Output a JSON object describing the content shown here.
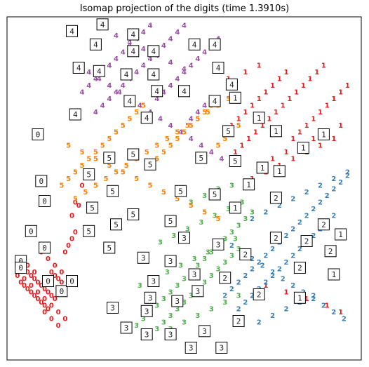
{
  "chart_data": {
    "type": "scatter",
    "title": "Isomap projection of the digits (time 1.3910s)",
    "xlabel": "",
    "ylabel": "",
    "grid": false,
    "legend": "none",
    "axis_ticks": "hidden",
    "xlim": [
      0,
      1
    ],
    "ylim": [
      0,
      1
    ],
    "colors": {
      "0": "#e41a1c",
      "1": "#e41a1c",
      "2": "#377eb8",
      "3": "#4daf4a",
      "4": "#984ea3",
      "5": "#ff7f00"
    },
    "series": [
      {
        "label": "0",
        "x": [
          0.01,
          0.02,
          0.03,
          0.04,
          0.05,
          0.06,
          0.07,
          0.08,
          0.09,
          0.1,
          0.11,
          0.12,
          0.15,
          0.16,
          0.17,
          0.18,
          0.02,
          0.03,
          0.04,
          0.05,
          0.06,
          0.07,
          0.08,
          0.09,
          0.1,
          0.11,
          0.12,
          0.13,
          0.14,
          0.18,
          0.2,
          0.01,
          0.03,
          0.05,
          0.07,
          0.09,
          0.11,
          0.13,
          0.15,
          0.08,
          0.1,
          0.12,
          0.14,
          0.16,
          0.17,
          0.19,
          0.02,
          0.04,
          0.06,
          0.09,
          0.11,
          0.13
        ],
        "y": [
          0.27,
          0.26,
          0.25,
          0.24,
          0.23,
          0.22,
          0.21,
          0.2,
          0.19,
          0.18,
          0.17,
          0.16,
          0.3,
          0.32,
          0.34,
          0.36,
          0.21,
          0.2,
          0.19,
          0.18,
          0.17,
          0.16,
          0.15,
          0.14,
          0.13,
          0.24,
          0.23,
          0.22,
          0.21,
          0.45,
          0.5,
          0.23,
          0.22,
          0.2,
          0.18,
          0.16,
          0.14,
          0.12,
          0.1,
          0.3,
          0.28,
          0.26,
          0.24,
          0.22,
          0.41,
          0.44,
          0.28,
          0.26,
          0.24,
          0.12,
          0.1,
          0.08
        ]
      },
      {
        "label": "1",
        "x": [
          0.62,
          0.64,
          0.66,
          0.68,
          0.7,
          0.72,
          0.74,
          0.76,
          0.78,
          0.8,
          0.82,
          0.84,
          0.86,
          0.88,
          0.9,
          0.92,
          0.94,
          0.96,
          0.98,
          0.65,
          0.67,
          0.69,
          0.71,
          0.73,
          0.75,
          0.77,
          0.79,
          0.81,
          0.83,
          0.85,
          0.87,
          0.89,
          0.91,
          0.63,
          0.68,
          0.72,
          0.76,
          0.8,
          0.84,
          0.88,
          0.92,
          0.96,
          0.7,
          0.74,
          0.78,
          0.82,
          0.86,
          0.9,
          0.94,
          0.74,
          0.8,
          0.86,
          0.92,
          0.96
        ],
        "y": [
          0.66,
          0.68,
          0.7,
          0.72,
          0.74,
          0.76,
          0.78,
          0.8,
          0.82,
          0.84,
          0.64,
          0.66,
          0.68,
          0.7,
          0.72,
          0.74,
          0.76,
          0.78,
          0.8,
          0.6,
          0.62,
          0.64,
          0.66,
          0.68,
          0.7,
          0.72,
          0.74,
          0.76,
          0.78,
          0.8,
          0.82,
          0.84,
          0.86,
          0.82,
          0.84,
          0.86,
          0.58,
          0.6,
          0.62,
          0.64,
          0.66,
          0.68,
          0.52,
          0.54,
          0.56,
          0.58,
          0.6,
          0.62,
          0.64,
          0.2,
          0.18,
          0.16,
          0.14,
          0.12
        ]
      },
      {
        "label": "2",
        "x": [
          0.62,
          0.64,
          0.66,
          0.68,
          0.7,
          0.72,
          0.74,
          0.76,
          0.78,
          0.8,
          0.82,
          0.84,
          0.86,
          0.88,
          0.9,
          0.92,
          0.94,
          0.96,
          0.98,
          0.66,
          0.68,
          0.7,
          0.72,
          0.74,
          0.76,
          0.78,
          0.8,
          0.82,
          0.84,
          0.86,
          0.88,
          0.9,
          0.92,
          0.94,
          0.64,
          0.67,
          0.7,
          0.73,
          0.76,
          0.79,
          0.82,
          0.85,
          0.88,
          0.91,
          0.94,
          0.97,
          0.7,
          0.74,
          0.78,
          0.82,
          0.86,
          0.9,
          0.94,
          0.98,
          0.72,
          0.76,
          0.8,
          0.84,
          0.88
        ],
        "y": [
          0.17,
          0.19,
          0.21,
          0.23,
          0.25,
          0.27,
          0.29,
          0.31,
          0.33,
          0.35,
          0.37,
          0.39,
          0.41,
          0.43,
          0.45,
          0.47,
          0.49,
          0.51,
          0.53,
          0.13,
          0.15,
          0.17,
          0.19,
          0.21,
          0.23,
          0.25,
          0.27,
          0.29,
          0.31,
          0.33,
          0.35,
          0.37,
          0.39,
          0.41,
          0.32,
          0.3,
          0.28,
          0.26,
          0.24,
          0.22,
          0.2,
          0.18,
          0.16,
          0.14,
          0.12,
          0.1,
          0.4,
          0.42,
          0.44,
          0.46,
          0.48,
          0.5,
          0.52,
          0.54,
          0.09,
          0.11,
          0.13,
          0.15,
          0.17
        ]
      },
      {
        "label": "3",
        "x": [
          0.36,
          0.38,
          0.4,
          0.42,
          0.44,
          0.46,
          0.48,
          0.5,
          0.52,
          0.54,
          0.56,
          0.58,
          0.6,
          0.62,
          0.64,
          0.66,
          0.68,
          0.7,
          0.4,
          0.42,
          0.44,
          0.46,
          0.48,
          0.5,
          0.52,
          0.54,
          0.56,
          0.58,
          0.6,
          0.62,
          0.64,
          0.66,
          0.37,
          0.41,
          0.45,
          0.49,
          0.53,
          0.57,
          0.61,
          0.65,
          0.43,
          0.47,
          0.51,
          0.55,
          0.59,
          0.63,
          0.67,
          0.46,
          0.5,
          0.54,
          0.58,
          0.62,
          0.66,
          0.52,
          0.56,
          0.6,
          0.64
        ],
        "y": [
          0.08,
          0.1,
          0.12,
          0.14,
          0.16,
          0.18,
          0.2,
          0.22,
          0.24,
          0.26,
          0.28,
          0.3,
          0.32,
          0.34,
          0.36,
          0.38,
          0.4,
          0.42,
          0.05,
          0.07,
          0.09,
          0.11,
          0.13,
          0.15,
          0.17,
          0.19,
          0.21,
          0.23,
          0.25,
          0.27,
          0.29,
          0.31,
          0.2,
          0.22,
          0.24,
          0.26,
          0.28,
          0.3,
          0.32,
          0.34,
          0.33,
          0.35,
          0.37,
          0.39,
          0.41,
          0.43,
          0.45,
          0.07,
          0.09,
          0.11,
          0.13,
          0.15,
          0.17,
          0.45,
          0.47,
          0.49,
          0.5
        ]
      },
      {
        "label": "4",
        "x": [
          0.2,
          0.22,
          0.24,
          0.26,
          0.28,
          0.3,
          0.32,
          0.34,
          0.36,
          0.38,
          0.4,
          0.42,
          0.44,
          0.46,
          0.48,
          0.5,
          0.52,
          0.54,
          0.56,
          0.58,
          0.6,
          0.24,
          0.26,
          0.28,
          0.3,
          0.32,
          0.34,
          0.36,
          0.38,
          0.4,
          0.42,
          0.44,
          0.46,
          0.48,
          0.5,
          0.52,
          0.54,
          0.56,
          0.22,
          0.25,
          0.28,
          0.31,
          0.34,
          0.37,
          0.4,
          0.43,
          0.46,
          0.49,
          0.52,
          0.55,
          0.58,
          0.61,
          0.3,
          0.34,
          0.38,
          0.42,
          0.46,
          0.5
        ],
        "y": [
          0.78,
          0.8,
          0.82,
          0.84,
          0.86,
          0.88,
          0.9,
          0.92,
          0.94,
          0.96,
          0.98,
          0.76,
          0.78,
          0.8,
          0.82,
          0.84,
          0.86,
          0.88,
          0.9,
          0.92,
          0.94,
          0.72,
          0.74,
          0.76,
          0.78,
          0.8,
          0.82,
          0.84,
          0.86,
          0.88,
          0.9,
          0.92,
          0.94,
          0.96,
          0.98,
          0.7,
          0.72,
          0.74,
          0.84,
          0.82,
          0.8,
          0.78,
          0.76,
          0.74,
          0.72,
          0.7,
          0.68,
          0.66,
          0.64,
          0.62,
          0.6,
          0.58,
          0.95,
          0.93,
          0.91,
          0.89,
          0.87,
          0.85
        ]
      },
      {
        "label": "5",
        "x": [
          0.14,
          0.16,
          0.18,
          0.2,
          0.22,
          0.24,
          0.26,
          0.28,
          0.3,
          0.32,
          0.34,
          0.36,
          0.38,
          0.4,
          0.42,
          0.44,
          0.46,
          0.48,
          0.5,
          0.52,
          0.54,
          0.56,
          0.58,
          0.6,
          0.62,
          0.64,
          0.66,
          0.18,
          0.21,
          0.24,
          0.27,
          0.3,
          0.33,
          0.36,
          0.39,
          0.42,
          0.45,
          0.48,
          0.51,
          0.54,
          0.57,
          0.6,
          0.63,
          0.16,
          0.2,
          0.24,
          0.28,
          0.32,
          0.36,
          0.4,
          0.44,
          0.48,
          0.52,
          0.56,
          0.6
        ],
        "y": [
          0.5,
          0.52,
          0.54,
          0.56,
          0.58,
          0.6,
          0.62,
          0.64,
          0.66,
          0.68,
          0.7,
          0.72,
          0.74,
          0.56,
          0.58,
          0.6,
          0.62,
          0.64,
          0.66,
          0.68,
          0.7,
          0.72,
          0.74,
          0.62,
          0.64,
          0.66,
          0.68,
          0.46,
          0.48,
          0.5,
          0.52,
          0.54,
          0.56,
          0.58,
          0.6,
          0.62,
          0.64,
          0.66,
          0.68,
          0.7,
          0.72,
          0.74,
          0.76,
          0.62,
          0.6,
          0.58,
          0.56,
          0.54,
          0.52,
          0.5,
          0.48,
          0.46,
          0.44,
          0.42,
          0.4
        ]
      }
    ],
    "thumbnails": [
      {
        "digit": "0",
        "x": 0.07,
        "y": 0.66
      },
      {
        "digit": "0",
        "x": 0.08,
        "y": 0.52
      },
      {
        "digit": "0",
        "x": 0.09,
        "y": 0.46
      },
      {
        "digit": "0",
        "x": 0.05,
        "y": 0.37
      },
      {
        "digit": "0",
        "x": 0.09,
        "y": 0.32
      },
      {
        "digit": "0",
        "x": 0.02,
        "y": 0.28
      },
      {
        "digit": "0",
        "x": 0.1,
        "y": 0.22
      },
      {
        "digit": "0",
        "x": 0.14,
        "y": 0.19
      },
      {
        "digit": "0",
        "x": 0.17,
        "y": 0.22
      },
      {
        "digit": "0",
        "x": 0.02,
        "y": 0.26
      },
      {
        "digit": "1",
        "x": 0.65,
        "y": 0.77
      },
      {
        "digit": "1",
        "x": 0.72,
        "y": 0.71
      },
      {
        "digit": "1",
        "x": 0.77,
        "y": 0.67
      },
      {
        "digit": "1",
        "x": 0.85,
        "y": 0.62
      },
      {
        "digit": "1",
        "x": 0.91,
        "y": 0.66
      },
      {
        "digit": "1",
        "x": 0.73,
        "y": 0.56
      },
      {
        "digit": "1",
        "x": 0.78,
        "y": 0.55
      },
      {
        "digit": "1",
        "x": 0.65,
        "y": 0.44
      },
      {
        "digit": "1",
        "x": 0.96,
        "y": 0.36
      },
      {
        "digit": "1",
        "x": 0.94,
        "y": 0.24
      },
      {
        "digit": "1",
        "x": 0.84,
        "y": 0.17
      },
      {
        "digit": "1",
        "x": 0.69,
        "y": 0.51
      },
      {
        "digit": "2",
        "x": 0.77,
        "y": 0.47
      },
      {
        "digit": "2",
        "x": 0.91,
        "y": 0.39
      },
      {
        "digit": "2",
        "x": 0.77,
        "y": 0.35
      },
      {
        "digit": "2",
        "x": 0.86,
        "y": 0.34
      },
      {
        "digit": "2",
        "x": 0.68,
        "y": 0.3
      },
      {
        "digit": "2",
        "x": 0.93,
        "y": 0.31
      },
      {
        "digit": "2",
        "x": 0.84,
        "y": 0.26
      },
      {
        "digit": "2",
        "x": 0.62,
        "y": 0.23
      },
      {
        "digit": "2",
        "x": 0.72,
        "y": 0.18
      },
      {
        "digit": "2",
        "x": 0.66,
        "y": 0.1
      },
      {
        "digit": "3",
        "x": 0.5,
        "y": 0.35
      },
      {
        "digit": "3",
        "x": 0.6,
        "y": 0.33
      },
      {
        "digit": "3",
        "x": 0.38,
        "y": 0.29
      },
      {
        "digit": "3",
        "x": 0.46,
        "y": 0.28
      },
      {
        "digit": "3",
        "x": 0.53,
        "y": 0.24
      },
      {
        "digit": "3",
        "x": 0.41,
        "y": 0.22
      },
      {
        "digit": "3",
        "x": 0.54,
        "y": 0.19
      },
      {
        "digit": "3",
        "x": 0.4,
        "y": 0.17
      },
      {
        "digit": "3",
        "x": 0.48,
        "y": 0.16
      },
      {
        "digit": "3",
        "x": 0.29,
        "y": 0.14
      },
      {
        "digit": "3",
        "x": 0.39,
        "y": 0.13
      },
      {
        "digit": "3",
        "x": 0.33,
        "y": 0.08
      },
      {
        "digit": "3",
        "x": 0.39,
        "y": 0.06
      },
      {
        "digit": "3",
        "x": 0.46,
        "y": 0.06
      },
      {
        "digit": "3",
        "x": 0.56,
        "y": 0.07
      },
      {
        "digit": "3",
        "x": 0.52,
        "y": 0.02
      },
      {
        "digit": "3",
        "x": 0.61,
        "y": 0.02
      },
      {
        "digit": "4",
        "x": 0.17,
        "y": 0.97
      },
      {
        "digit": "4",
        "x": 0.26,
        "y": 0.99
      },
      {
        "digit": "4",
        "x": 0.35,
        "y": 0.96
      },
      {
        "digit": "4",
        "x": 0.24,
        "y": 0.93
      },
      {
        "digit": "4",
        "x": 0.53,
        "y": 0.93
      },
      {
        "digit": "4",
        "x": 0.59,
        "y": 0.93
      },
      {
        "digit": "4",
        "x": 0.35,
        "y": 0.91
      },
      {
        "digit": "4",
        "x": 0.41,
        "y": 0.91
      },
      {
        "digit": "4",
        "x": 0.19,
        "y": 0.86
      },
      {
        "digit": "4",
        "x": 0.25,
        "y": 0.85
      },
      {
        "digit": "4",
        "x": 0.33,
        "y": 0.84
      },
      {
        "digit": "4",
        "x": 0.41,
        "y": 0.84
      },
      {
        "digit": "4",
        "x": 0.6,
        "y": 0.86
      },
      {
        "digit": "4",
        "x": 0.42,
        "y": 0.79
      },
      {
        "digit": "4",
        "x": 0.5,
        "y": 0.79
      },
      {
        "digit": "4",
        "x": 0.34,
        "y": 0.76
      },
      {
        "digit": "4",
        "x": 0.64,
        "y": 0.81
      },
      {
        "digit": "4",
        "x": 0.59,
        "y": 0.76
      },
      {
        "digit": "4",
        "x": 0.39,
        "y": 0.71
      },
      {
        "digit": "4",
        "x": 0.18,
        "y": 0.72
      },
      {
        "digit": "5",
        "x": 0.63,
        "y": 0.67
      },
      {
        "digit": "5",
        "x": 0.35,
        "y": 0.6
      },
      {
        "digit": "5",
        "x": 0.4,
        "y": 0.57
      },
      {
        "digit": "5",
        "x": 0.28,
        "y": 0.59
      },
      {
        "digit": "5",
        "x": 0.55,
        "y": 0.59
      },
      {
        "digit": "5",
        "x": 0.65,
        "y": 0.58
      },
      {
        "digit": "5",
        "x": 0.22,
        "y": 0.54
      },
      {
        "digit": "5",
        "x": 0.29,
        "y": 0.49
      },
      {
        "digit": "5",
        "x": 0.49,
        "y": 0.49
      },
      {
        "digit": "5",
        "x": 0.23,
        "y": 0.44
      },
      {
        "digit": "5",
        "x": 0.35,
        "y": 0.42
      },
      {
        "digit": "5",
        "x": 0.3,
        "y": 0.39
      },
      {
        "digit": "5",
        "x": 0.46,
        "y": 0.4
      },
      {
        "digit": "5",
        "x": 0.22,
        "y": 0.37
      },
      {
        "digit": "5",
        "x": 0.28,
        "y": 0.32
      },
      {
        "digit": "5",
        "x": 0.59,
        "y": 0.48
      }
    ]
  }
}
